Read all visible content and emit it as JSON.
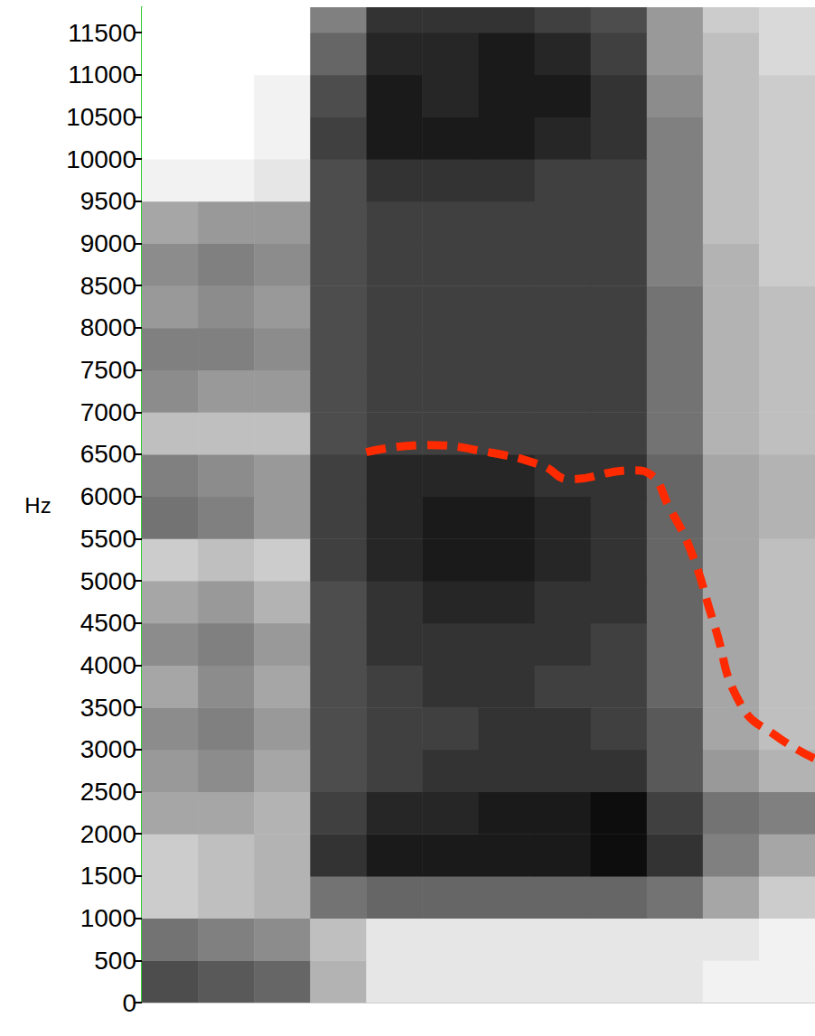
{
  "chart_data": {
    "type": "spectrogram",
    "y_label": "Hz",
    "xlim": [
      0,
      12
    ],
    "ylim": [
      0,
      11800
    ],
    "yticks": [
      0,
      500,
      1000,
      1500,
      2000,
      2500,
      3000,
      3500,
      4000,
      4500,
      5000,
      5500,
      6000,
      6500,
      7000,
      7500,
      8000,
      8500,
      9000,
      9500,
      10000,
      10500,
      11000,
      11500
    ],
    "tick_labels": "y",
    "grid": false,
    "color": "#000000",
    "x_bins": [
      0,
      1,
      2,
      3,
      4,
      5,
      6,
      7,
      8,
      9,
      10,
      11,
      12
    ],
    "y_bins": [
      0,
      500,
      1000,
      1500,
      2000,
      2500,
      3000,
      3500,
      4000,
      4500,
      5000,
      5500,
      6000,
      6500,
      7000,
      7500,
      8000,
      8500,
      9000,
      9500,
      10000,
      10500,
      11000,
      11500,
      12000
    ],
    "zlim": [
      0,
      100
    ],
    "cells": [
      [
        70,
        65,
        60,
        30,
        10,
        10,
        10,
        10,
        10,
        10,
        5,
        5
      ],
      [
        55,
        50,
        45,
        25,
        10,
        10,
        10,
        10,
        10,
        10,
        10,
        5
      ],
      [
        20,
        25,
        30,
        55,
        60,
        60,
        60,
        60,
        60,
        55,
        35,
        20
      ],
      [
        20,
        25,
        30,
        80,
        90,
        90,
        90,
        90,
        95,
        80,
        50,
        35
      ],
      [
        35,
        35,
        30,
        75,
        85,
        85,
        90,
        90,
        95,
        75,
        55,
        50
      ],
      [
        40,
        45,
        35,
        70,
        75,
        80,
        80,
        80,
        80,
        65,
        40,
        30
      ],
      [
        45,
        50,
        40,
        70,
        75,
        75,
        80,
        80,
        75,
        65,
        35,
        25
      ],
      [
        35,
        45,
        35,
        70,
        75,
        80,
        80,
        75,
        75,
        60,
        35,
        25
      ],
      [
        45,
        50,
        40,
        70,
        80,
        80,
        80,
        80,
        75,
        60,
        35,
        25
      ],
      [
        35,
        40,
        30,
        70,
        80,
        85,
        85,
        80,
        80,
        60,
        35,
        25
      ],
      [
        20,
        25,
        20,
        75,
        85,
        90,
        90,
        85,
        80,
        60,
        35,
        25
      ],
      [
        55,
        50,
        40,
        75,
        85,
        90,
        90,
        85,
        80,
        60,
        35,
        30
      ],
      [
        50,
        45,
        40,
        75,
        85,
        85,
        85,
        80,
        80,
        60,
        35,
        30
      ],
      [
        25,
        25,
        25,
        70,
        75,
        75,
        75,
        75,
        75,
        55,
        30,
        25
      ],
      [
        45,
        40,
        40,
        70,
        75,
        75,
        75,
        75,
        75,
        55,
        30,
        25
      ],
      [
        50,
        50,
        45,
        70,
        75,
        75,
        75,
        75,
        75,
        55,
        30,
        25
      ],
      [
        40,
        45,
        40,
        70,
        75,
        75,
        75,
        75,
        75,
        55,
        30,
        25
      ],
      [
        45,
        50,
        45,
        70,
        75,
        75,
        75,
        75,
        75,
        50,
        30,
        20
      ],
      [
        35,
        40,
        40,
        70,
        75,
        75,
        75,
        75,
        75,
        50,
        25,
        20
      ],
      [
        5,
        5,
        10,
        70,
        80,
        80,
        80,
        75,
        75,
        50,
        25,
        20
      ],
      [
        0,
        0,
        5,
        75,
        90,
        90,
        90,
        85,
        80,
        50,
        25,
        20
      ],
      [
        0,
        0,
        5,
        70,
        90,
        85,
        90,
        90,
        80,
        45,
        25,
        20
      ],
      [
        0,
        0,
        0,
        60,
        85,
        85,
        90,
        85,
        75,
        40,
        25,
        15
      ],
      [
        0,
        0,
        0,
        50,
        80,
        80,
        80,
        75,
        70,
        40,
        20,
        15
      ]
    ],
    "line": {
      "x": [
        4.0,
        5.04,
        6.17,
        7.14,
        7.62,
        8.75,
        9.07,
        9.39,
        9.79,
        10.2,
        10.68,
        11.32,
        12.0
      ],
      "y": [
        6525,
        6610,
        6525,
        6365,
        6205,
        6310,
        6260,
        5885,
        5350,
        4490,
        3530,
        3155,
        2890
      ],
      "color": "#ff2a00",
      "line_style": "dashed"
    }
  }
}
